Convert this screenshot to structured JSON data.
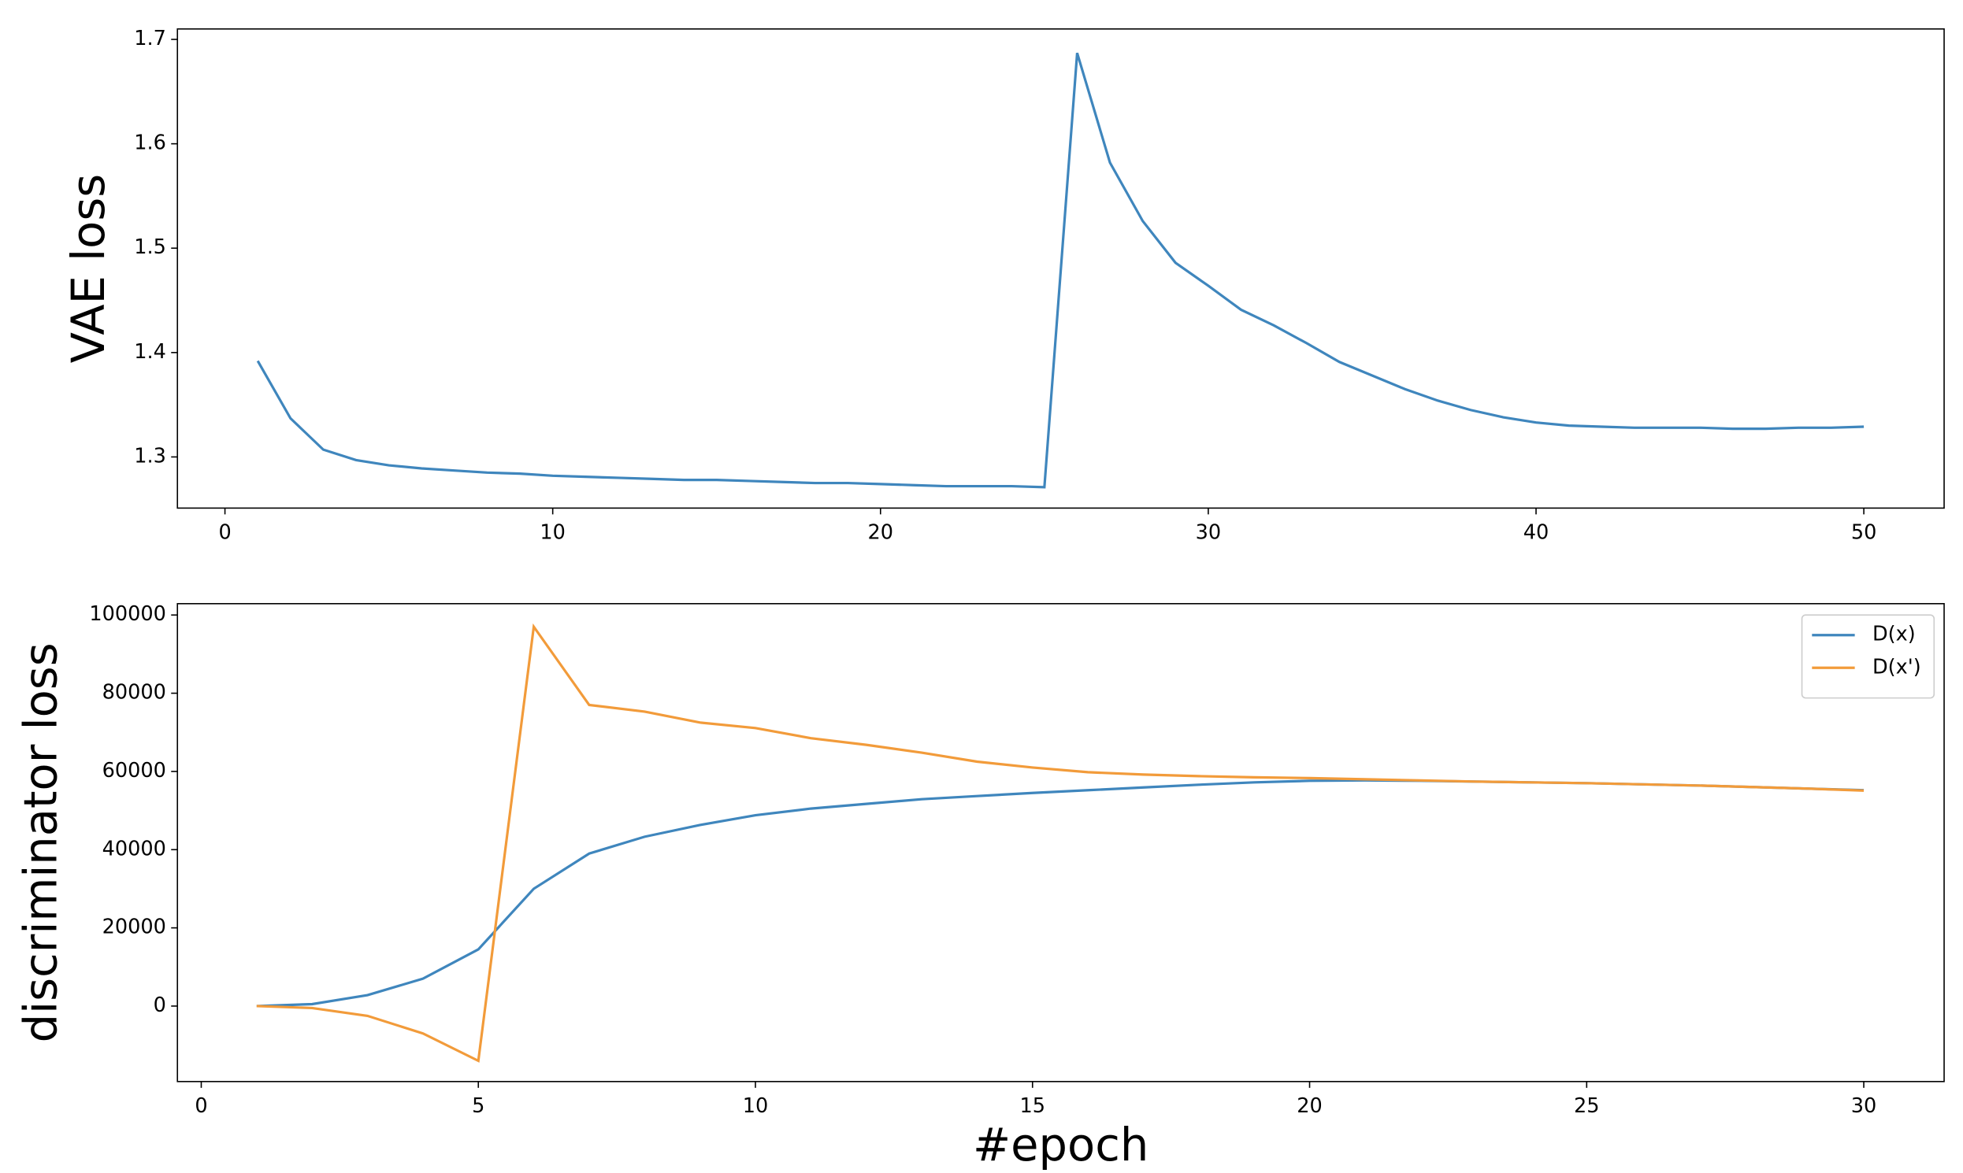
{
  "chart_data": [
    {
      "type": "line",
      "y_label": "VAE loss",
      "x": [
        1,
        2,
        3,
        4,
        5,
        6,
        7,
        8,
        9,
        10,
        11,
        12,
        13,
        14,
        15,
        16,
        17,
        18,
        19,
        20,
        21,
        22,
        23,
        24,
        25,
        26,
        27,
        28,
        29,
        30,
        31,
        32,
        33,
        34,
        35,
        36,
        37,
        38,
        39,
        40,
        41,
        42,
        43,
        44,
        45,
        46,
        47,
        48,
        49,
        50
      ],
      "series": [
        {
          "name": null,
          "color": "#3f86bd",
          "values": [
            1.392,
            1.337,
            1.307,
            1.297,
            1.292,
            1.289,
            1.287,
            1.285,
            1.284,
            1.282,
            1.281,
            1.28,
            1.279,
            1.278,
            1.278,
            1.277,
            1.276,
            1.275,
            1.275,
            1.274,
            1.273,
            1.272,
            1.272,
            1.272,
            1.271,
            1.687,
            1.582,
            1.526,
            1.486,
            1.464,
            1.441,
            1.426,
            1.409,
            1.391,
            1.378,
            1.365,
            1.354,
            1.345,
            1.338,
            1.333,
            1.33,
            1.329,
            1.328,
            1.328,
            1.328,
            1.327,
            1.327,
            1.328,
            1.328,
            1.329
          ]
        }
      ],
      "xlim": [
        -1.45,
        52.45
      ],
      "xticks": [
        0,
        10,
        20,
        30,
        40,
        50
      ],
      "ylim": [
        1.251,
        1.71
      ],
      "yticks": [
        1.3,
        1.4,
        1.5,
        1.6,
        1.7
      ]
    },
    {
      "type": "line",
      "x_label": "#epoch",
      "y_label": "discriminator loss",
      "x": [
        1,
        2,
        3,
        4,
        5,
        6,
        7,
        8,
        9,
        10,
        11,
        12,
        13,
        14,
        15,
        16,
        17,
        18,
        19,
        20,
        21,
        22,
        23,
        24,
        25,
        26,
        27,
        28,
        29,
        30
      ],
      "series": [
        {
          "name": "D(x)",
          "color": "#3f86bd",
          "values": [
            0,
            500,
            2800,
            7000,
            14500,
            30000,
            39000,
            43300,
            46300,
            48800,
            50500,
            51700,
            52900,
            53700,
            54500,
            55200,
            55900,
            56600,
            57200,
            57600,
            57700,
            57600,
            57400,
            57200,
            57000,
            56700,
            56400,
            56000,
            55600,
            55200
          ]
        },
        {
          "name": "D(x')",
          "color": "#f29b3a",
          "values": [
            0,
            -500,
            -2500,
            -7000,
            -14000,
            97000,
            77000,
            75300,
            72500,
            71100,
            68500,
            66800,
            64800,
            62500,
            61000,
            59800,
            59200,
            58800,
            58500,
            58300,
            58000,
            57700,
            57400,
            57200,
            57000,
            56700,
            56400,
            56000,
            55600,
            55100
          ]
        }
      ],
      "xlim": [
        -0.43,
        31.45
      ],
      "xticks": [
        0,
        5,
        10,
        15,
        20,
        25,
        30
      ],
      "ylim": [
        -19300,
        102900
      ],
      "yticks": [
        0,
        20000,
        40000,
        60000,
        80000,
        100000
      ],
      "legend": "upper right"
    }
  ]
}
